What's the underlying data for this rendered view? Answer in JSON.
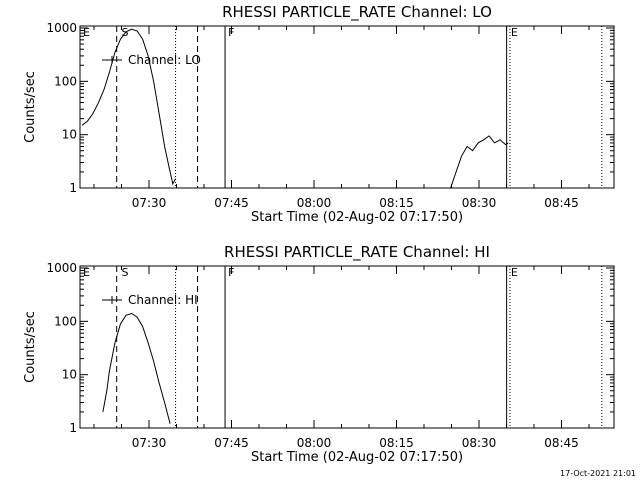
{
  "footer": {
    "timestamp": "17-Oct-2021 21:01"
  },
  "chart_data": [
    {
      "type": "line",
      "title": "RHESSI PARTICLE_RATE Channel: LO",
      "xlabel": "Start Time (02-Aug-02 07:17:50)",
      "ylabel": "Counts/sec",
      "yscale": "log",
      "ylim": [
        1,
        1000
      ],
      "y_ticks": [
        {
          "v": 1,
          "label": "1"
        },
        {
          "v": 10,
          "label": "10"
        },
        {
          "v": 100,
          "label": "100"
        },
        {
          "v": 1000,
          "label": "1000"
        }
      ],
      "x_ticks": [
        "07:30",
        "07:45",
        "08:00",
        "08:15",
        "08:30",
        "08:45"
      ],
      "markers": [
        {
          "label": "E",
          "pos": "start"
        },
        {
          "label": "S",
          "pos": "dashed-1"
        },
        {
          "label": "F",
          "pos": "solid-1"
        },
        {
          "label": "E",
          "pos": "solid-2"
        }
      ],
      "series": [
        {
          "name": "Channel: LO",
          "legend": "top-left",
          "segments": [
            [
              [
                0,
                15
              ],
              [
                1,
                18
              ],
              [
                2,
                25
              ],
              [
                3,
                40
              ],
              [
                4,
                70
              ],
              [
                5,
                150
              ],
              [
                6,
                350
              ],
              [
                7,
                620
              ],
              [
                8,
                850
              ],
              [
                9,
                950
              ],
              [
                10,
                880
              ],
              [
                11,
                620
              ],
              [
                12,
                300
              ],
              [
                13,
                100
              ],
              [
                14,
                25
              ],
              [
                15,
                6
              ],
              [
                16,
                2
              ],
              [
                16.5,
                1.2
              ],
              [
                17,
                1.5
              ]
            ],
            [
              [
                67,
                1
              ],
              [
                68,
                2
              ],
              [
                69,
                4
              ],
              [
                70,
                6
              ],
              [
                71,
                5
              ],
              [
                72,
                7
              ],
              [
                73,
                8
              ],
              [
                74,
                9.5
              ],
              [
                75,
                7
              ],
              [
                76,
                8
              ],
              [
                77,
                6.5
              ],
              [
                77.5,
                7
              ]
            ]
          ]
        }
      ]
    },
    {
      "type": "line",
      "title": "RHESSI PARTICLE_RATE Channel: HI",
      "xlabel": "Start Time (02-Aug-02 07:17:50)",
      "ylabel": "Counts/sec",
      "yscale": "log",
      "ylim": [
        1,
        1000
      ],
      "y_ticks": [
        {
          "v": 1,
          "label": "1"
        },
        {
          "v": 10,
          "label": "10"
        },
        {
          "v": 100,
          "label": "100"
        },
        {
          "v": 1000,
          "label": "1000"
        }
      ],
      "x_ticks": [
        "07:30",
        "07:45",
        "08:00",
        "08:15",
        "08:30",
        "08:45"
      ],
      "markers": [
        {
          "label": "E",
          "pos": "start"
        },
        {
          "label": "S",
          "pos": "dashed-1"
        },
        {
          "label": "F",
          "pos": "solid-1"
        },
        {
          "label": "E",
          "pos": "solid-2"
        }
      ],
      "series": [
        {
          "name": "Channel: HI",
          "legend": "top-left",
          "segments": [
            [
              [
                3.8,
                2
              ],
              [
                4.5,
                5
              ],
              [
                5,
                12
              ],
              [
                6,
                40
              ],
              [
                7,
                90
              ],
              [
                8,
                130
              ],
              [
                9,
                140
              ],
              [
                10,
                120
              ],
              [
                11,
                80
              ],
              [
                12,
                40
              ],
              [
                13,
                18
              ],
              [
                14,
                7
              ],
              [
                15,
                3
              ],
              [
                16,
                1.2
              ]
            ]
          ]
        }
      ]
    }
  ]
}
